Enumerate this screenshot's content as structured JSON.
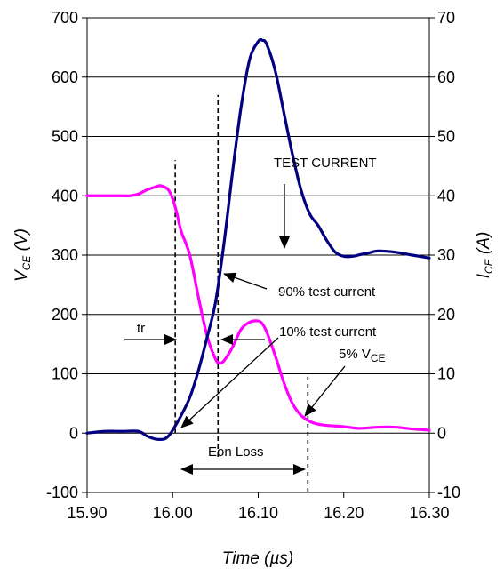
{
  "chart_data": {
    "type": "line",
    "xlabel": "Time (µs)",
    "ylabel_left": {
      "main": "V",
      "sub": "CE",
      "unit": " (V)"
    },
    "ylabel_right": {
      "main": "I",
      "sub": "CE",
      "unit": " (A)"
    },
    "xlim": [
      15.9,
      16.3
    ],
    "ylim_left": [
      -100,
      700
    ],
    "ylim_right": [
      -10,
      70
    ],
    "x_ticks": [
      "15.90",
      "16.00",
      "16.10",
      "16.20",
      "16.30"
    ],
    "y_left_ticks": [
      "-100",
      "0",
      "100",
      "200",
      "300",
      "400",
      "500",
      "600",
      "700"
    ],
    "y_right_ticks": [
      "-10",
      "0",
      "10",
      "20",
      "30",
      "40",
      "50",
      "60",
      "70"
    ],
    "grid": "horizontal",
    "series": [
      {
        "name": "VCE",
        "axis": "left",
        "color": "#ff00ff",
        "x": [
          15.9,
          15.92,
          15.94,
          15.95,
          15.96,
          15.97,
          15.98,
          15.985,
          15.99,
          15.995,
          16.0,
          16.005,
          16.01,
          16.02,
          16.03,
          16.04,
          16.05,
          16.055,
          16.06,
          16.07,
          16.08,
          16.09,
          16.1,
          16.105,
          16.11,
          16.12,
          16.13,
          16.14,
          16.15,
          16.16,
          16.17,
          16.18,
          16.19,
          16.2,
          16.21,
          16.22,
          16.24,
          16.26,
          16.28,
          16.3
        ],
        "y": [
          400,
          400,
          400,
          400,
          403,
          410,
          415,
          417,
          415,
          410,
          395,
          370,
          340,
          300,
          230,
          165,
          125,
          118,
          122,
          145,
          175,
          187,
          189,
          184,
          170,
          130,
          85,
          50,
          30,
          20,
          15,
          13,
          12,
          11,
          9,
          8,
          10,
          10,
          7,
          5
        ]
      },
      {
        "name": "ICE",
        "axis": "right",
        "color": "#000080",
        "x": [
          15.9,
          15.92,
          15.94,
          15.96,
          15.97,
          15.98,
          15.99,
          15.995,
          16.0,
          16.01,
          16.02,
          16.03,
          16.04,
          16.05,
          16.06,
          16.07,
          16.08,
          16.09,
          16.1,
          16.105,
          16.11,
          16.12,
          16.13,
          16.14,
          16.15,
          16.16,
          16.17,
          16.18,
          16.19,
          16.2,
          16.21,
          16.22,
          16.23,
          16.24,
          16.26,
          16.28,
          16.3
        ],
        "y": [
          0,
          0.3,
          0.3,
          0.3,
          -0.5,
          -1,
          -1,
          -0.5,
          0.5,
          3,
          6,
          10.5,
          16,
          22,
          32,
          44,
          55,
          63,
          66,
          66.2,
          65.5,
          61,
          54,
          47,
          41,
          37,
          35,
          32.5,
          30.5,
          29.8,
          29.8,
          30.1,
          30.4,
          30.7,
          30.5,
          30,
          29.5
        ]
      }
    ],
    "markers": [
      {
        "kind": "vline",
        "x": 16.003,
        "from": 0,
        "to": 460,
        "style": "dashed"
      },
      {
        "kind": "vline",
        "x": 16.053,
        "from": -40,
        "to": 570,
        "style": "dashed"
      },
      {
        "kind": "vline",
        "x": 16.158,
        "from": -100,
        "to": 95,
        "style": "dashed"
      }
    ],
    "annotations": {
      "test_current": "TEST CURRENT",
      "pct90": "90% test current",
      "pct10": "10% test current",
      "tr": "tr",
      "vce5_prefix": "5% V",
      "vce5_sub": "CE",
      "eon": "Eon Loss"
    }
  }
}
